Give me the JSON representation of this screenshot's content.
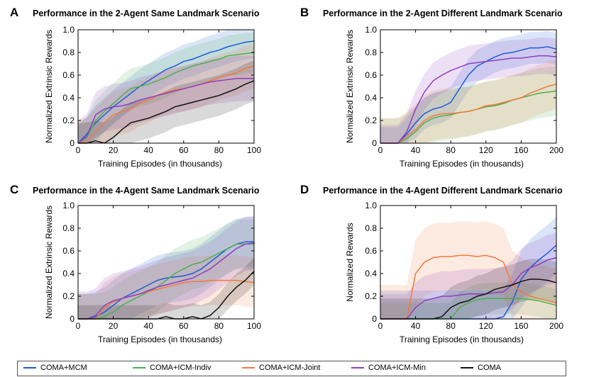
{
  "colors": {
    "COMA+MCM": "#1f5bd6",
    "COMA+ICM-Indiv": "#4caf50",
    "COMA+ICM-Joint": "#f07a3e",
    "COMA+ICM-Min": "#8e3fc0",
    "COMA": "#111111"
  },
  "legend": {
    "items": [
      "COMA+MCM",
      "COMA+ICM-Indiv",
      "COMA+ICM-Joint",
      "COMA+ICM-Min",
      "COMA"
    ]
  },
  "chart_data": [
    {
      "letter": "A",
      "type": "line",
      "title": "Performance in the 2-Agent Same Landmark Scenario",
      "xlabel": "Training Episodes (in thousands)",
      "ylabel": "Normalized Extrinsic Rewards",
      "xlim": [
        0,
        100
      ],
      "ylim": [
        0,
        1.0
      ],
      "xticks": [
        0,
        20,
        40,
        60,
        80,
        100
      ],
      "yticks": [
        0,
        0.2,
        0.4,
        0.6,
        0.8,
        1.0
      ],
      "x": [
        0,
        5,
        10,
        15,
        20,
        25,
        30,
        35,
        40,
        45,
        50,
        55,
        60,
        65,
        70,
        75,
        80,
        85,
        90,
        95,
        100
      ],
      "series": [
        {
          "name": "COMA+MCM",
          "values": [
            0,
            0.08,
            0.18,
            0.25,
            0.32,
            0.38,
            0.44,
            0.5,
            0.55,
            0.6,
            0.65,
            0.68,
            0.72,
            0.74,
            0.77,
            0.8,
            0.82,
            0.85,
            0.87,
            0.89,
            0.9
          ],
          "band": 0.15
        },
        {
          "name": "COMA+ICM-Indiv",
          "values": [
            0,
            0.05,
            0.2,
            0.28,
            0.35,
            0.42,
            0.48,
            0.5,
            0.52,
            0.55,
            0.58,
            0.62,
            0.65,
            0.68,
            0.7,
            0.72,
            0.74,
            0.77,
            0.78,
            0.79,
            0.8
          ],
          "band": 0.18
        },
        {
          "name": "COMA+ICM-Joint",
          "values": [
            0,
            0.02,
            0.1,
            0.18,
            0.25,
            0.28,
            0.3,
            0.35,
            0.38,
            0.42,
            0.45,
            0.47,
            0.48,
            0.5,
            0.52,
            0.55,
            0.58,
            0.6,
            0.62,
            0.66,
            0.68
          ],
          "band": 0.2
        },
        {
          "name": "COMA+ICM-Min",
          "values": [
            0,
            0.06,
            0.25,
            0.3,
            0.32,
            0.33,
            0.35,
            0.38,
            0.4,
            0.42,
            0.44,
            0.46,
            0.48,
            0.5,
            0.52,
            0.54,
            0.55,
            0.56,
            0.57,
            0.57,
            0.57
          ],
          "band": 0.2
        },
        {
          "name": "COMA",
          "values": [
            0,
            0,
            0.02,
            0.0,
            0.05,
            0.12,
            0.18,
            0.2,
            0.22,
            0.25,
            0.28,
            0.32,
            0.34,
            0.36,
            0.38,
            0.4,
            0.42,
            0.45,
            0.48,
            0.52,
            0.55
          ],
          "band": 0.18
        }
      ]
    },
    {
      "letter": "B",
      "type": "line",
      "title": "Performance in the 2-Agent Different Landmark Scenario",
      "xlabel": "Training Episodes (in thousands)",
      "ylabel": "Normalized Extrinsic Rewards",
      "xlim": [
        0,
        200
      ],
      "ylim": [
        0,
        1.0
      ],
      "xticks": [
        0,
        40,
        80,
        120,
        160,
        200
      ],
      "yticks": [
        0,
        0.2,
        0.4,
        0.6,
        0.8,
        1.0
      ],
      "x": [
        0,
        10,
        20,
        30,
        40,
        50,
        60,
        70,
        80,
        90,
        100,
        110,
        120,
        130,
        140,
        150,
        160,
        170,
        180,
        190,
        200
      ],
      "series": [
        {
          "name": "COMA+MCM",
          "values": [
            0,
            0,
            0,
            0.08,
            0.18,
            0.26,
            0.3,
            0.32,
            0.36,
            0.48,
            0.6,
            0.68,
            0.72,
            0.76,
            0.79,
            0.8,
            0.82,
            0.84,
            0.84,
            0.85,
            0.83
          ],
          "band": 0.14
        },
        {
          "name": "COMA+ICM-Indiv",
          "values": [
            0,
            0,
            0,
            0.04,
            0.1,
            0.18,
            0.22,
            0.24,
            0.25,
            0.27,
            0.28,
            0.3,
            0.32,
            0.33,
            0.35,
            0.38,
            0.4,
            0.42,
            0.44,
            0.45,
            0.46
          ],
          "band": 0.22
        },
        {
          "name": "COMA+ICM-Joint",
          "values": [
            0,
            0,
            0,
            0.06,
            0.12,
            0.2,
            0.24,
            0.26,
            0.26,
            0.27,
            0.28,
            0.3,
            0.33,
            0.34,
            0.36,
            0.38,
            0.4,
            0.44,
            0.47,
            0.5,
            0.52
          ],
          "band": 0.22
        },
        {
          "name": "COMA+ICM-Min",
          "values": [
            0,
            0,
            0,
            0.1,
            0.3,
            0.45,
            0.55,
            0.6,
            0.64,
            0.67,
            0.7,
            0.71,
            0.72,
            0.73,
            0.74,
            0.75,
            0.75,
            0.76,
            0.77,
            0.77,
            0.76
          ],
          "band": 0.16
        }
      ]
    },
    {
      "letter": "C",
      "type": "line",
      "title": "Performance in the 4-Agent Same Landmark Scenario",
      "xlabel": "Training Episodes (in thousands)",
      "ylabel": "Normalized Extrinsic Rewards",
      "xlim": [
        0,
        100
      ],
      "ylim": [
        0,
        1.0
      ],
      "xticks": [
        0,
        20,
        40,
        60,
        80,
        100
      ],
      "yticks": [
        0,
        0.2,
        0.4,
        0.6,
        0.8,
        1.0
      ],
      "x": [
        0,
        5,
        10,
        15,
        20,
        25,
        30,
        35,
        40,
        45,
        50,
        55,
        60,
        65,
        70,
        75,
        80,
        85,
        90,
        95,
        100
      ],
      "series": [
        {
          "name": "COMA+MCM",
          "values": [
            0,
            0,
            0.02,
            0.06,
            0.12,
            0.18,
            0.22,
            0.26,
            0.3,
            0.34,
            0.36,
            0.37,
            0.38,
            0.4,
            0.44,
            0.5,
            0.56,
            0.62,
            0.66,
            0.68,
            0.68
          ],
          "band": 0.22
        },
        {
          "name": "COMA+ICM-Indiv",
          "values": [
            0,
            0,
            0,
            0.02,
            0.06,
            0.12,
            0.16,
            0.2,
            0.24,
            0.28,
            0.34,
            0.4,
            0.44,
            0.48,
            0.5,
            0.54,
            0.58,
            0.62,
            0.66,
            0.66,
            0.66
          ],
          "band": 0.22
        },
        {
          "name": "COMA+ICM-Joint",
          "values": [
            0,
            0,
            0,
            0.1,
            0.15,
            0.18,
            0.2,
            0.22,
            0.24,
            0.26,
            0.28,
            0.3,
            0.32,
            0.33,
            0.33,
            0.34,
            0.34,
            0.34,
            0.34,
            0.33,
            0.32
          ],
          "band": 0.22
        },
        {
          "name": "COMA+ICM-Min",
          "values": [
            0,
            0,
            0.03,
            0.12,
            0.16,
            0.18,
            0.2,
            0.22,
            0.25,
            0.28,
            0.3,
            0.32,
            0.34,
            0.36,
            0.4,
            0.44,
            0.5,
            0.56,
            0.62,
            0.66,
            0.67
          ],
          "band": 0.24
        },
        {
          "name": "COMA",
          "values": [
            0,
            0,
            0,
            0,
            0,
            0,
            0,
            0,
            0,
            0,
            0.02,
            0.0,
            0.0,
            0.02,
            0.0,
            0.03,
            0.1,
            0.2,
            0.28,
            0.34,
            0.42
          ],
          "band": 0.12
        }
      ]
    },
    {
      "letter": "D",
      "type": "line",
      "title": "Performance in the 4-Agent Different Landmark Scenario",
      "xlabel": "Training Episodes (in thousands)",
      "ylabel": "Normalized Rewards",
      "xlim": [
        0,
        200
      ],
      "ylim": [
        0,
        1.0
      ],
      "xticks": [
        0,
        40,
        80,
        120,
        160,
        200
      ],
      "yticks": [
        0,
        0.2,
        0.4,
        0.6,
        0.8,
        1.0
      ],
      "x": [
        0,
        10,
        20,
        30,
        40,
        50,
        60,
        70,
        80,
        90,
        100,
        110,
        120,
        130,
        140,
        150,
        160,
        170,
        180,
        190,
        200
      ],
      "series": [
        {
          "name": "COMA+MCM",
          "values": [
            0,
            0,
            0,
            0,
            0,
            0,
            0,
            0,
            0,
            0,
            0,
            0,
            0,
            0,
            0.02,
            0.15,
            0.35,
            0.45,
            0.52,
            0.58,
            0.65
          ],
          "band": 0.25
        },
        {
          "name": "COMA+ICM-Indiv",
          "values": [
            0,
            0,
            0,
            0,
            0,
            0,
            0,
            0,
            0,
            0.1,
            0.14,
            0.17,
            0.18,
            0.18,
            0.18,
            0.18,
            0.18,
            0.17,
            0.16,
            0.14,
            0.12
          ],
          "band": 0.14
        },
        {
          "name": "COMA+ICM-Joint",
          "values": [
            0,
            0,
            0,
            0,
            0.4,
            0.5,
            0.54,
            0.55,
            0.55,
            0.56,
            0.56,
            0.55,
            0.56,
            0.54,
            0.5,
            0.3,
            0.24,
            0.2,
            0.18,
            0.16,
            0.14
          ],
          "band": 0.3
        },
        {
          "name": "COMA+ICM-Min",
          "values": [
            0,
            0,
            0,
            0,
            0.1,
            0.16,
            0.18,
            0.2,
            0.2,
            0.21,
            0.22,
            0.22,
            0.22,
            0.23,
            0.24,
            0.3,
            0.4,
            0.45,
            0.48,
            0.52,
            0.54
          ],
          "band": 0.22
        },
        {
          "name": "COMA",
          "values": [
            0,
            0,
            0,
            0,
            0,
            0,
            0,
            0.02,
            0.1,
            0.14,
            0.16,
            0.2,
            0.22,
            0.26,
            0.28,
            0.3,
            0.33,
            0.35,
            0.35,
            0.34,
            0.32
          ],
          "band": 0.18
        }
      ]
    }
  ]
}
